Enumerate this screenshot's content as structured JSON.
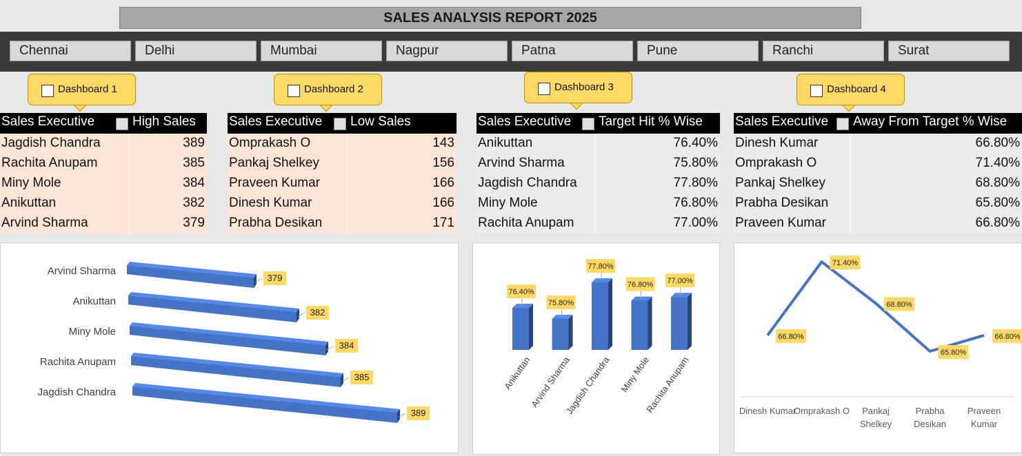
{
  "title": "SALES ANALYSIS REPORT 2025",
  "cities": [
    "Chennai",
    "Delhi",
    "Mumbai",
    "Nagpur",
    "Patna",
    "Pune",
    "Ranchi",
    "Surat"
  ],
  "dashboards": [
    "Dashboard 1",
    "Dashboard 2",
    "Dashboard 3",
    "Dashboard 4"
  ],
  "tables": [
    {
      "headers": [
        "Sales Executive",
        "High Sales"
      ],
      "rows": [
        [
          "Jagdish Chandra",
          389
        ],
        [
          "Rachita Anupam",
          385
        ],
        [
          "Miny Mole",
          384
        ],
        [
          "Anikuttan",
          382
        ],
        [
          "Arvind Sharma",
          379
        ]
      ]
    },
    {
      "headers": [
        "Sales Executive",
        "Low Sales"
      ],
      "rows": [
        [
          "Omprakash O",
          143
        ],
        [
          "Pankaj Shelkey",
          156
        ],
        [
          "Praveen Kumar",
          166
        ],
        [
          "Dinesh Kumar",
          166
        ],
        [
          "Prabha Desikan",
          171
        ]
      ]
    },
    {
      "headers": [
        "Sales Executive",
        "Target Hit % Wise"
      ],
      "rows": [
        [
          "Anikuttan",
          "76.40%"
        ],
        [
          "Arvind Sharma",
          "75.80%"
        ],
        [
          "Jagdish Chandra",
          "77.80%"
        ],
        [
          "Miny Mole",
          "76.80%"
        ],
        [
          "Rachita Anupam",
          "77.00%"
        ]
      ]
    },
    {
      "headers": [
        "Sales Executive",
        "Away From Target % Wise"
      ],
      "rows": [
        [
          "Dinesh Kumar",
          "66.80%"
        ],
        [
          "Omprakash O",
          "71.40%"
        ],
        [
          "Pankaj Shelkey",
          "68.80%"
        ],
        [
          "Prabha Desikan",
          "65.80%"
        ],
        [
          "Praveen Kumar",
          "66.80%"
        ]
      ]
    }
  ],
  "chart_data": [
    {
      "type": "bar",
      "orientation": "horizontal",
      "categories": [
        "Jagdish Chandra",
        "Rachita Anupam",
        "Miny Mole",
        "Anikuttan",
        "Arvind Sharma"
      ],
      "values": [
        389,
        385,
        384,
        382,
        379
      ],
      "color": "#4472c4"
    },
    {
      "type": "bar",
      "orientation": "vertical",
      "categories": [
        "Anikuttan",
        "Arvind Sharma",
        "Jagdish Chandra",
        "Miny Mole",
        "Rachita Anupam"
      ],
      "values": [
        76.4,
        75.8,
        77.8,
        76.8,
        77.0
      ],
      "value_labels": [
        "76.40%",
        "75.80%",
        "77.80%",
        "76.80%",
        "77.00%"
      ],
      "color": "#4472c4"
    },
    {
      "type": "line",
      "categories": [
        "Dinesh Kumar",
        "Omprakash O",
        "Pankaj Shelkey",
        "Prabha Desikan",
        "Praveen Kumar"
      ],
      "values": [
        66.8,
        71.4,
        68.8,
        65.8,
        66.8
      ],
      "value_labels": [
        "66.80%",
        "71.40%",
        "68.80%",
        "65.80%",
        "66.80%"
      ],
      "color": "#4472c4"
    }
  ]
}
